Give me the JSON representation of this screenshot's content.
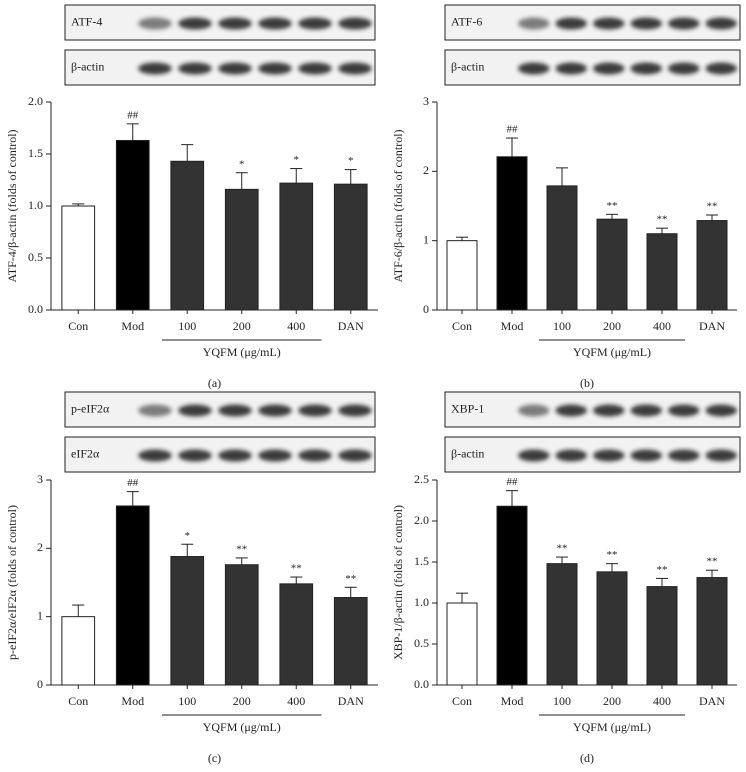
{
  "chart_data": [
    {
      "type": "bar",
      "panel_label": "(a)",
      "blot_labels": [
        "ATF-4",
        "β-actin"
      ],
      "y_label": "ATF-4/β-actin (folds of control)",
      "group_label": "YQFM (μg/mL)",
      "categories": [
        "Con",
        "Mod",
        "100",
        "200",
        "400",
        "DAN"
      ],
      "values": [
        1.0,
        1.63,
        1.43,
        1.16,
        1.22,
        1.21
      ],
      "errors": [
        0.02,
        0.16,
        0.16,
        0.16,
        0.14,
        0.14
      ],
      "annotations": [
        null,
        "##",
        null,
        "*",
        "*",
        "*"
      ],
      "colors": [
        "#ffffff",
        "#000000",
        "#333333",
        "#333333",
        "#333333",
        "#333333"
      ],
      "ylim": [
        0,
        2
      ],
      "yticks": [
        {
          "value": 0,
          "label": "0.0"
        },
        {
          "value": 0.5,
          "label": "0.5"
        },
        {
          "value": 1,
          "label": "1.0"
        },
        {
          "value": 1.5,
          "label": "1.5"
        },
        {
          "value": 2,
          "label": "2.0"
        }
      ]
    },
    {
      "type": "bar",
      "panel_label": "(b)",
      "blot_labels": [
        "ATF-6",
        "β-actin"
      ],
      "y_label": "ATF-6/β-actin (folds of control)",
      "group_label": "YQFM (μg/mL)",
      "categories": [
        "Con",
        "Mod",
        "100",
        "200",
        "400",
        "DAN"
      ],
      "values": [
        1.0,
        2.21,
        1.79,
        1.31,
        1.1,
        1.29
      ],
      "errors": [
        0.05,
        0.27,
        0.26,
        0.07,
        0.08,
        0.08
      ],
      "annotations": [
        null,
        "##",
        null,
        "**",
        "**",
        "**"
      ],
      "colors": [
        "#ffffff",
        "#000000",
        "#333333",
        "#333333",
        "#333333",
        "#333333"
      ],
      "ylim": [
        0,
        3
      ],
      "yticks": [
        0,
        1,
        2,
        3
      ]
    },
    {
      "type": "bar",
      "panel_label": "(c)",
      "blot_labels": [
        "p-eIF2α",
        "eIF2α"
      ],
      "y_label": "p-eIF2α/eIF2α (folds of control)",
      "group_label": "YQFM (μg/mL)",
      "categories": [
        "Con",
        "Mod",
        "100",
        "200",
        "400",
        "DAN"
      ],
      "values": [
        1.0,
        2.62,
        1.88,
        1.76,
        1.48,
        1.28
      ],
      "errors": [
        0.17,
        0.21,
        0.18,
        0.1,
        0.1,
        0.15
      ],
      "annotations": [
        null,
        "##",
        "*",
        "**",
        "**",
        "**"
      ],
      "colors": [
        "#ffffff",
        "#000000",
        "#333333",
        "#333333",
        "#333333",
        "#333333"
      ],
      "ylim": [
        0,
        3
      ],
      "yticks": [
        0,
        1,
        2,
        3
      ]
    },
    {
      "type": "bar",
      "panel_label": "(d)",
      "blot_labels": [
        "XBP-1",
        "β-actin"
      ],
      "y_label": "XBP-1/β-actin (folds of control)",
      "group_label": "YQFM (μg/mL)",
      "categories": [
        "Con",
        "Mod",
        "100",
        "200",
        "400",
        "DAN"
      ],
      "values": [
        1.0,
        2.18,
        1.48,
        1.38,
        1.2,
        1.31
      ],
      "errors": [
        0.12,
        0.19,
        0.08,
        0.1,
        0.1,
        0.09
      ],
      "annotations": [
        null,
        "##",
        "**",
        "**",
        "**",
        "**"
      ],
      "colors": [
        "#ffffff",
        "#000000",
        "#333333",
        "#333333",
        "#333333",
        "#333333"
      ],
      "ylim": [
        0,
        2.5
      ],
      "yticks": [
        {
          "value": 0,
          "label": "0.0"
        },
        {
          "value": 0.5,
          "label": "0.5"
        },
        {
          "value": 1,
          "label": "1.0"
        },
        {
          "value": 1.5,
          "label": "1.5"
        },
        {
          "value": 2,
          "label": "2.0"
        },
        {
          "value": 2.5,
          "label": "2.5"
        }
      ]
    }
  ]
}
